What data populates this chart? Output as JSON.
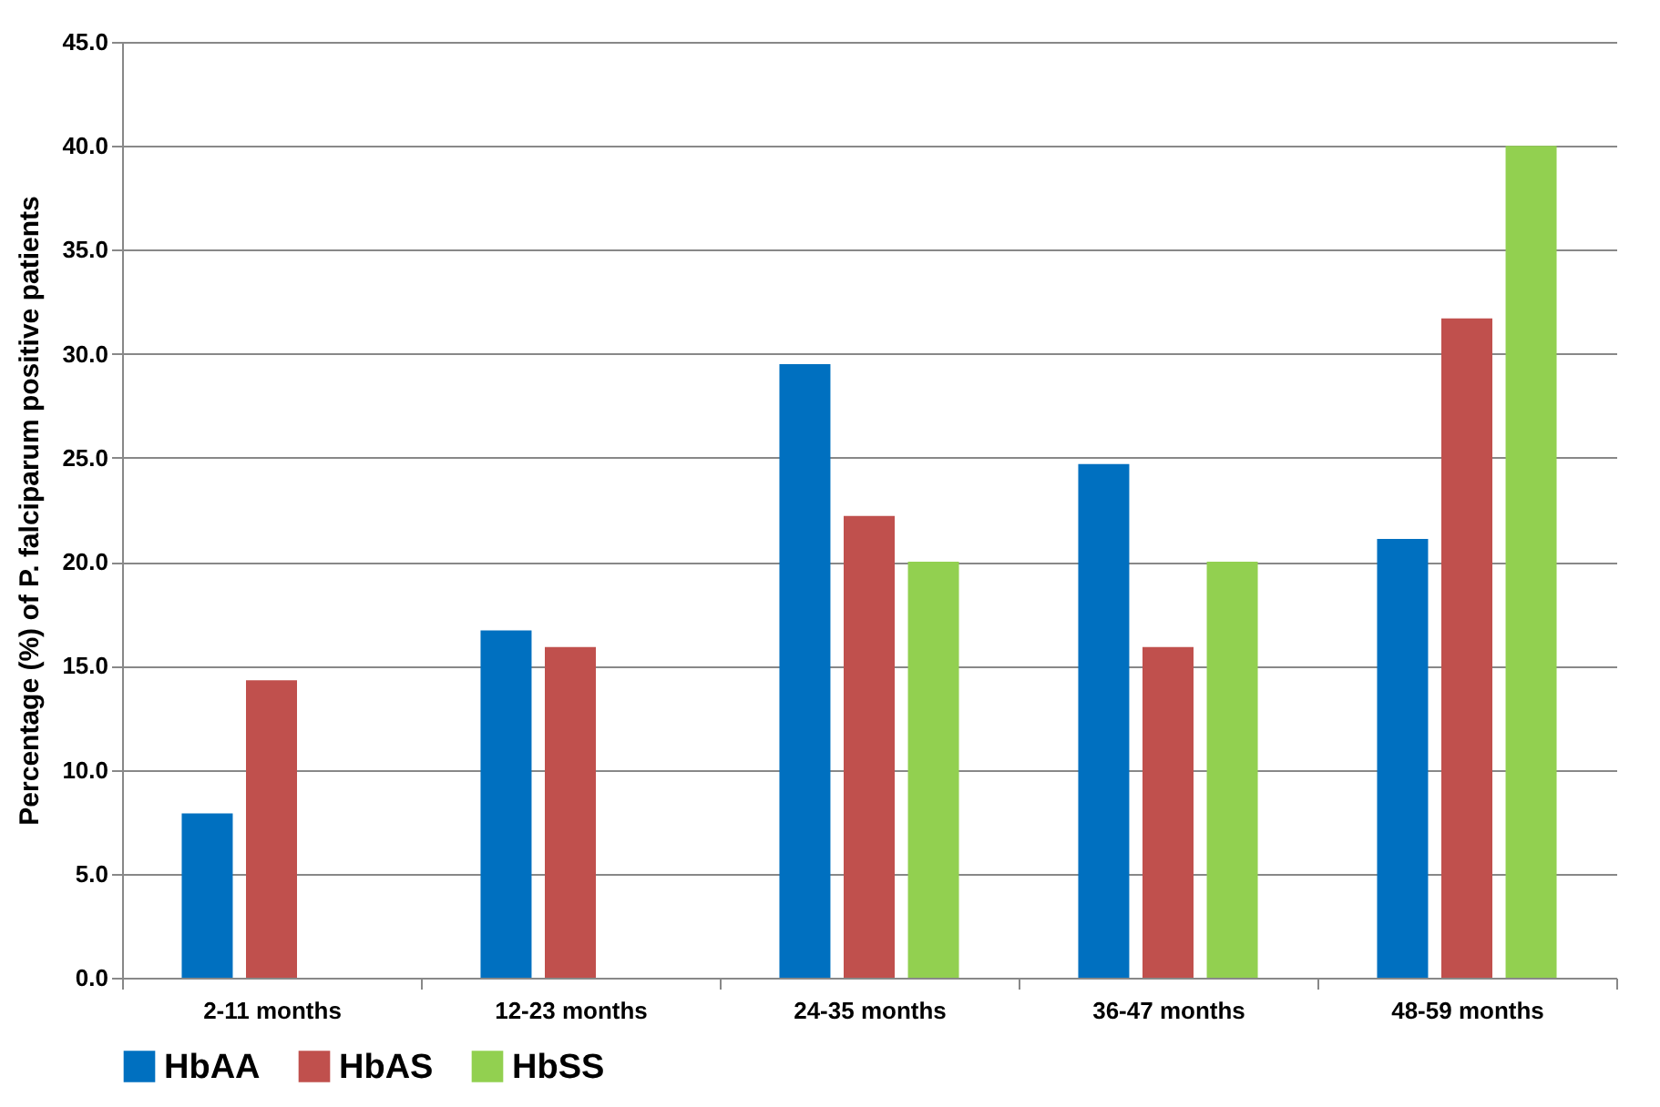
{
  "chart_data": {
    "type": "bar",
    "ylabel": "Percentage (%) of P. falciparum positive patients",
    "categories": [
      "2-11 months",
      "12-23 months",
      "24-35 months",
      "36-47 months",
      "48-59 months"
    ],
    "series": [
      {
        "name": "HbAA",
        "color": "#0070c0",
        "values": [
          7.9,
          16.7,
          29.5,
          24.7,
          21.1
        ]
      },
      {
        "name": "HbAS",
        "color": "#c0504d",
        "values": [
          14.3,
          15.9,
          22.2,
          15.9,
          31.7
        ]
      },
      {
        "name": "HbSS",
        "color": "#92d050",
        "values": [
          null,
          null,
          20.0,
          20.0,
          40.0
        ]
      }
    ],
    "ylim": [
      0,
      45
    ],
    "yticks": [
      {
        "value": 0,
        "label": "0.0"
      },
      {
        "value": 5,
        "label": "5.0"
      },
      {
        "value": 10,
        "label": "10.0"
      },
      {
        "value": 15,
        "label": "15.0"
      },
      {
        "value": 20,
        "label": "20.0"
      },
      {
        "value": 25,
        "label": "25.0"
      },
      {
        "value": 30,
        "label": "30.0"
      },
      {
        "value": 35,
        "label": "35.0"
      },
      {
        "value": 40,
        "label": "40.0"
      },
      {
        "value": 45,
        "label": "45.0"
      }
    ],
    "grid": "y",
    "legend": "bottom"
  }
}
